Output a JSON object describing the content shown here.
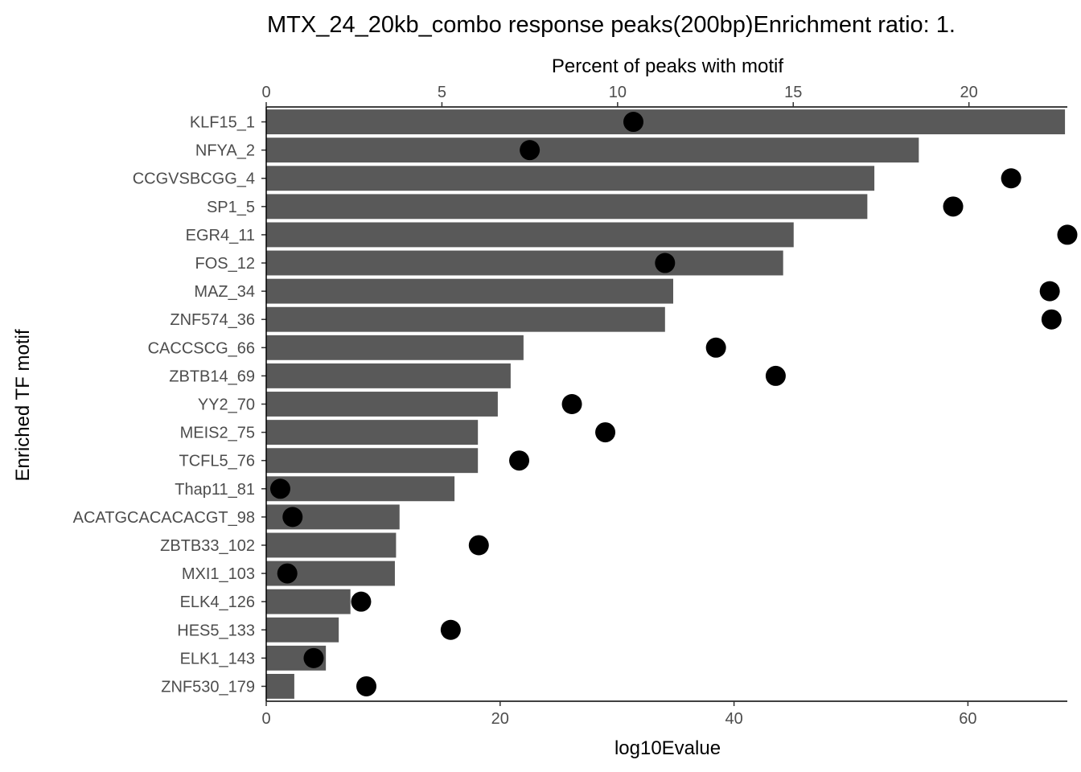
{
  "chart_data": {
    "type": "bar",
    "title": "MTX_24_20kb_combo response peaks(200bp)Enrichment ratio: 1.",
    "xlabel": "log10Evalue",
    "x2label": "Percent of peaks with motif",
    "ylabel": "Enriched TF motif",
    "xlim": [
      0,
      68.5
    ],
    "x2lim": [
      0,
      22.8
    ],
    "xticks": [
      "0",
      "20",
      "40",
      "60"
    ],
    "x2ticks": [
      "0",
      "5",
      "10",
      "15",
      "20"
    ],
    "categories": [
      "KLF15_1",
      "NFYA_2",
      "CCGVSBCGG_4",
      "SP1_5",
      "EGR4_11",
      "FOS_12",
      "MAZ_34",
      "ZNF574_36",
      "CACCSCG_66",
      "ZBTB14_69",
      "YY2_70",
      "MEIS2_75",
      "TCFL5_76",
      "Thap11_81",
      "ACATGCACACACGT_98",
      "ZBTB33_102",
      "MXI1_103",
      "ELK4_126",
      "HES5_133",
      "ELK1_143",
      "ZNF530_179"
    ],
    "series": [
      {
        "type": "bar",
        "axis": "bottom",
        "values": [
          68.3,
          55.8,
          52.0,
          51.4,
          45.1,
          44.2,
          34.8,
          34.1,
          22.0,
          20.9,
          19.8,
          18.1,
          18.1,
          16.1,
          11.4,
          11.1,
          11.0,
          7.2,
          6.2,
          5.1,
          2.4
        ]
      },
      {
        "type": "scatter",
        "axis": "top",
        "values": [
          10.45,
          7.5,
          21.2,
          19.55,
          22.8,
          11.35,
          22.3,
          22.35,
          12.8,
          14.5,
          8.7,
          9.65,
          7.2,
          0.4,
          0.75,
          6.05,
          0.6,
          2.7,
          5.25,
          1.35,
          2.85
        ]
      }
    ],
    "colors": {
      "bar": "#595959",
      "point": "#000000"
    },
    "grid": false,
    "legend": "none"
  }
}
